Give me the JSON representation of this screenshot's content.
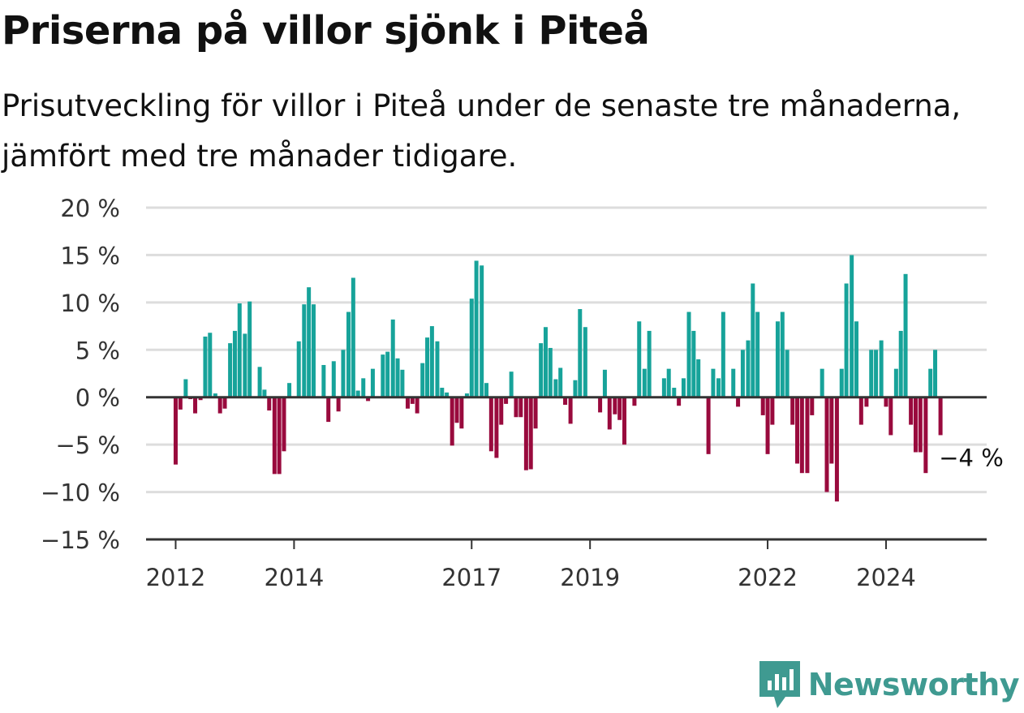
{
  "title": "Priserna på villor sjönk i Piteå",
  "subtitle": "Prisutveckling för villor i Piteå under de senaste tre månaderna, jämfört med tre månader tidigare.",
  "brand": {
    "name": "Newsworthy",
    "color": "#3f9a91"
  },
  "colors": {
    "positive": "#17a39a",
    "negative": "#990a3d",
    "grid": "#dddddd",
    "axis": "#333333"
  },
  "chart_data": {
    "type": "bar",
    "xlim": [
      2011.5,
      2025.7
    ],
    "ylim": [
      -15,
      20
    ],
    "yticks": [
      {
        "value": 20,
        "label": "20 %"
      },
      {
        "value": 15,
        "label": "15 %"
      },
      {
        "value": 10,
        "label": "10 %"
      },
      {
        "value": 5,
        "label": "5 %"
      },
      {
        "value": 0,
        "label": "0 %"
      },
      {
        "value": -5,
        "label": "−5 %"
      },
      {
        "value": -10,
        "label": "−10 %"
      },
      {
        "value": -15,
        "label": "−15 %"
      }
    ],
    "xticks": [
      {
        "value": 2012,
        "label": "2012"
      },
      {
        "value": 2014,
        "label": "2014"
      },
      {
        "value": 2017,
        "label": "2017"
      },
      {
        "value": 2019,
        "label": "2019"
      },
      {
        "value": 2022,
        "label": "2022"
      },
      {
        "value": 2024,
        "label": "2024"
      }
    ],
    "callout": {
      "x": 2025.33,
      "value": -4,
      "label": "−4 %"
    },
    "bars": [
      {
        "x": 2012.0,
        "y": -7.1
      },
      {
        "x": 2012.08,
        "y": -1.3
      },
      {
        "x": 2012.17,
        "y": 1.9
      },
      {
        "x": 2012.25,
        "y": -0.2
      },
      {
        "x": 2012.33,
        "y": -1.7
      },
      {
        "x": 2012.42,
        "y": -0.3
      },
      {
        "x": 2012.5,
        "y": 6.4
      },
      {
        "x": 2012.58,
        "y": 6.8
      },
      {
        "x": 2012.67,
        "y": 0.4
      },
      {
        "x": 2012.75,
        "y": -1.7
      },
      {
        "x": 2012.83,
        "y": -1.2
      },
      {
        "x": 2012.92,
        "y": 5.7
      },
      {
        "x": 2013.0,
        "y": 7.0
      },
      {
        "x": 2013.08,
        "y": 9.9
      },
      {
        "x": 2013.17,
        "y": 6.7
      },
      {
        "x": 2013.25,
        "y": 10.1
      },
      {
        "x": 2013.42,
        "y": 3.2
      },
      {
        "x": 2013.5,
        "y": 0.8
      },
      {
        "x": 2013.58,
        "y": -1.4
      },
      {
        "x": 2013.67,
        "y": -8.1
      },
      {
        "x": 2013.75,
        "y": -8.1
      },
      {
        "x": 2013.83,
        "y": -5.7
      },
      {
        "x": 2013.92,
        "y": 1.5
      },
      {
        "x": 2014.08,
        "y": 5.9
      },
      {
        "x": 2014.17,
        "y": 9.8
      },
      {
        "x": 2014.25,
        "y": 11.6
      },
      {
        "x": 2014.33,
        "y": 9.8
      },
      {
        "x": 2014.5,
        "y": 3.4
      },
      {
        "x": 2014.58,
        "y": -2.6
      },
      {
        "x": 2014.67,
        "y": 3.8
      },
      {
        "x": 2014.75,
        "y": -1.5
      },
      {
        "x": 2014.83,
        "y": 5.0
      },
      {
        "x": 2014.92,
        "y": 9.0
      },
      {
        "x": 2015.0,
        "y": 12.6
      },
      {
        "x": 2015.08,
        "y": 0.7
      },
      {
        "x": 2015.17,
        "y": 2.0
      },
      {
        "x": 2015.25,
        "y": -0.4
      },
      {
        "x": 2015.33,
        "y": 3.0
      },
      {
        "x": 2015.5,
        "y": 4.5
      },
      {
        "x": 2015.58,
        "y": 4.8
      },
      {
        "x": 2015.67,
        "y": 8.2
      },
      {
        "x": 2015.75,
        "y": 4.1
      },
      {
        "x": 2015.83,
        "y": 2.9
      },
      {
        "x": 2015.92,
        "y": -1.2
      },
      {
        "x": 2016.0,
        "y": -0.7
      },
      {
        "x": 2016.08,
        "y": -1.7
      },
      {
        "x": 2016.17,
        "y": 3.6
      },
      {
        "x": 2016.25,
        "y": 6.3
      },
      {
        "x": 2016.33,
        "y": 7.5
      },
      {
        "x": 2016.42,
        "y": 5.9
      },
      {
        "x": 2016.5,
        "y": 1.0
      },
      {
        "x": 2016.58,
        "y": 0.5
      },
      {
        "x": 2016.67,
        "y": -5.1
      },
      {
        "x": 2016.75,
        "y": -2.7
      },
      {
        "x": 2016.83,
        "y": -3.3
      },
      {
        "x": 2016.92,
        "y": 0.4
      },
      {
        "x": 2017.0,
        "y": 10.4
      },
      {
        "x": 2017.08,
        "y": 14.4
      },
      {
        "x": 2017.17,
        "y": 13.9
      },
      {
        "x": 2017.25,
        "y": 1.5
      },
      {
        "x": 2017.33,
        "y": -5.7
      },
      {
        "x": 2017.42,
        "y": -6.4
      },
      {
        "x": 2017.5,
        "y": -2.9
      },
      {
        "x": 2017.58,
        "y": -0.7
      },
      {
        "x": 2017.67,
        "y": 2.7
      },
      {
        "x": 2017.75,
        "y": -2.1
      },
      {
        "x": 2017.83,
        "y": -2.1
      },
      {
        "x": 2017.92,
        "y": -7.7
      },
      {
        "x": 2018.0,
        "y": -7.6
      },
      {
        "x": 2018.08,
        "y": -3.3
      },
      {
        "x": 2018.17,
        "y": 5.7
      },
      {
        "x": 2018.25,
        "y": 7.4
      },
      {
        "x": 2018.33,
        "y": 5.2
      },
      {
        "x": 2018.42,
        "y": 1.9
      },
      {
        "x": 2018.5,
        "y": 3.1
      },
      {
        "x": 2018.58,
        "y": -0.8
      },
      {
        "x": 2018.67,
        "y": -2.8
      },
      {
        "x": 2018.75,
        "y": 1.8
      },
      {
        "x": 2018.83,
        "y": 9.3
      },
      {
        "x": 2018.92,
        "y": 7.4
      },
      {
        "x": 2019.17,
        "y": -1.6
      },
      {
        "x": 2019.25,
        "y": 2.9
      },
      {
        "x": 2019.33,
        "y": -3.4
      },
      {
        "x": 2019.42,
        "y": -1.8
      },
      {
        "x": 2019.5,
        "y": -2.4
      },
      {
        "x": 2019.58,
        "y": -5.0
      },
      {
        "x": 2019.75,
        "y": -0.9
      },
      {
        "x": 2019.83,
        "y": 8.0
      },
      {
        "x": 2019.92,
        "y": 3.0
      },
      {
        "x": 2020.0,
        "y": 7.0
      },
      {
        "x": 2020.25,
        "y": 2.0
      },
      {
        "x": 2020.33,
        "y": 3.0
      },
      {
        "x": 2020.42,
        "y": 1.0
      },
      {
        "x": 2020.5,
        "y": -0.9
      },
      {
        "x": 2020.58,
        "y": 2.0
      },
      {
        "x": 2020.67,
        "y": 9.0
      },
      {
        "x": 2020.75,
        "y": 7.0
      },
      {
        "x": 2020.83,
        "y": 4.0
      },
      {
        "x": 2021.0,
        "y": -6.0
      },
      {
        "x": 2021.08,
        "y": 3.0
      },
      {
        "x": 2021.17,
        "y": 2.0
      },
      {
        "x": 2021.25,
        "y": 9.0
      },
      {
        "x": 2021.42,
        "y": 3.0
      },
      {
        "x": 2021.5,
        "y": -1.0
      },
      {
        "x": 2021.58,
        "y": 5.0
      },
      {
        "x": 2021.67,
        "y": 6.0
      },
      {
        "x": 2021.75,
        "y": 12.0
      },
      {
        "x": 2021.83,
        "y": 9.0
      },
      {
        "x": 2021.92,
        "y": -1.9
      },
      {
        "x": 2022.0,
        "y": -6.0
      },
      {
        "x": 2022.08,
        "y": -2.9
      },
      {
        "x": 2022.17,
        "y": 8.0
      },
      {
        "x": 2022.25,
        "y": 9.0
      },
      {
        "x": 2022.33,
        "y": 5.0
      },
      {
        "x": 2022.42,
        "y": -2.9
      },
      {
        "x": 2022.5,
        "y": -7.0
      },
      {
        "x": 2022.58,
        "y": -8.0
      },
      {
        "x": 2022.67,
        "y": -8.0
      },
      {
        "x": 2022.75,
        "y": -1.9
      },
      {
        "x": 2022.92,
        "y": 3.0
      },
      {
        "x": 2023.0,
        "y": -10.0
      },
      {
        "x": 2023.08,
        "y": -7.0
      },
      {
        "x": 2023.17,
        "y": -11.0
      },
      {
        "x": 2023.25,
        "y": 3.0
      },
      {
        "x": 2023.33,
        "y": 12.0
      },
      {
        "x": 2023.42,
        "y": 15.0
      },
      {
        "x": 2023.5,
        "y": 8.0
      },
      {
        "x": 2023.58,
        "y": -2.9
      },
      {
        "x": 2023.67,
        "y": -1.0
      },
      {
        "x": 2023.75,
        "y": 5.0
      },
      {
        "x": 2023.83,
        "y": 5.0
      },
      {
        "x": 2023.92,
        "y": 6.0
      },
      {
        "x": 2024.0,
        "y": -1.0
      },
      {
        "x": 2024.08,
        "y": -4.0
      },
      {
        "x": 2024.17,
        "y": 3.0
      },
      {
        "x": 2024.25,
        "y": 7.0
      },
      {
        "x": 2024.33,
        "y": 13.0
      },
      {
        "x": 2024.42,
        "y": -2.9
      },
      {
        "x": 2024.5,
        "y": -5.8
      },
      {
        "x": 2024.58,
        "y": -5.8
      },
      {
        "x": 2024.67,
        "y": -8.0
      },
      {
        "x": 2024.75,
        "y": 3.0
      },
      {
        "x": 2024.83,
        "y": 5.0
      },
      {
        "x": 2024.92,
        "y": -4.0
      }
    ]
  }
}
